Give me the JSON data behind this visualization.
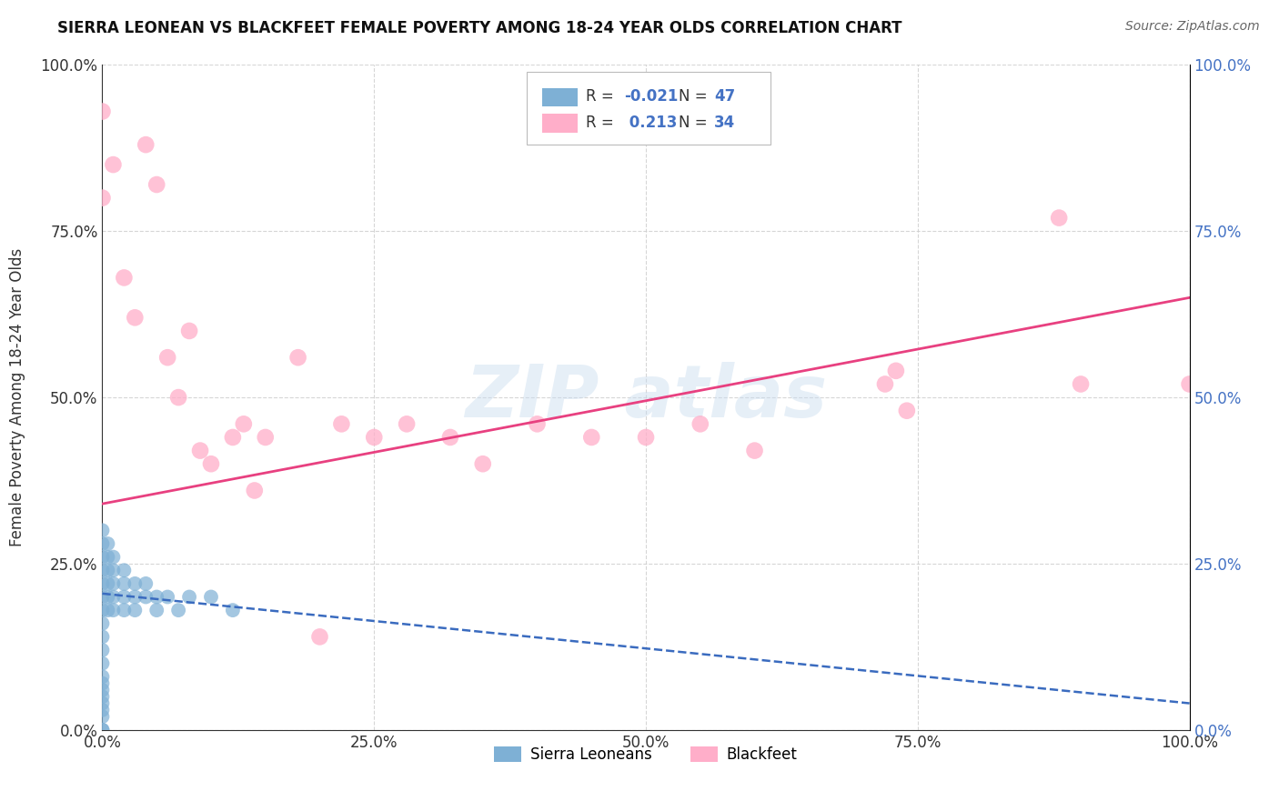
{
  "title": "SIERRA LEONEAN VS BLACKFEET FEMALE POVERTY AMONG 18-24 YEAR OLDS CORRELATION CHART",
  "source": "Source: ZipAtlas.com",
  "ylabel": "Female Poverty Among 18-24 Year Olds",
  "xlim": [
    0.0,
    1.0
  ],
  "ylim": [
    0.0,
    1.0
  ],
  "xticks": [
    0.0,
    0.25,
    0.5,
    0.75,
    1.0
  ],
  "yticks": [
    0.0,
    0.25,
    0.5,
    0.75,
    1.0
  ],
  "xticklabels": [
    "0.0%",
    "25.0%",
    "50.0%",
    "75.0%",
    "100.0%"
  ],
  "yticklabels": [
    "0.0%",
    "25.0%",
    "50.0%",
    "75.0%",
    "100.0%"
  ],
  "sierra_color": "#7eb0d5",
  "blackfeet_color": "#ffaec9",
  "sierra_line_color": "#3a6bbf",
  "blackfeet_line_color": "#e84080",
  "background_color": "#ffffff",
  "watermark": "ZIPatlas",
  "sierra_line_start_y": 0.205,
  "sierra_line_end_y": 0.04,
  "blackfeet_line_start_y": 0.34,
  "blackfeet_line_end_y": 0.65,
  "sierra_x": [
    0.0,
    0.0,
    0.0,
    0.0,
    0.0,
    0.0,
    0.0,
    0.0,
    0.0,
    0.0,
    0.0,
    0.0,
    0.0,
    0.0,
    0.0,
    0.0,
    0.0,
    0.0,
    0.0,
    0.0,
    0.005,
    0.005,
    0.005,
    0.005,
    0.005,
    0.005,
    0.01,
    0.01,
    0.01,
    0.01,
    0.01,
    0.02,
    0.02,
    0.02,
    0.02,
    0.03,
    0.03,
    0.03,
    0.04,
    0.04,
    0.05,
    0.05,
    0.06,
    0.07,
    0.08,
    0.1,
    0.12
  ],
  "sierra_y": [
    0.0,
    0.0,
    0.02,
    0.03,
    0.04,
    0.05,
    0.06,
    0.07,
    0.08,
    0.1,
    0.12,
    0.14,
    0.16,
    0.18,
    0.2,
    0.22,
    0.24,
    0.26,
    0.28,
    0.3,
    0.18,
    0.2,
    0.22,
    0.24,
    0.26,
    0.28,
    0.18,
    0.2,
    0.22,
    0.24,
    0.26,
    0.18,
    0.2,
    0.22,
    0.24,
    0.18,
    0.2,
    0.22,
    0.2,
    0.22,
    0.18,
    0.2,
    0.2,
    0.18,
    0.2,
    0.2,
    0.18
  ],
  "blackfeet_x": [
    0.0,
    0.0,
    0.01,
    0.02,
    0.03,
    0.04,
    0.05,
    0.06,
    0.07,
    0.08,
    0.09,
    0.1,
    0.12,
    0.13,
    0.14,
    0.15,
    0.18,
    0.2,
    0.22,
    0.25,
    0.28,
    0.32,
    0.35,
    0.4,
    0.45,
    0.5,
    0.55,
    0.6,
    0.72,
    0.73,
    0.74,
    0.88,
    0.9,
    1.0
  ],
  "blackfeet_y": [
    0.93,
    0.8,
    0.85,
    0.68,
    0.62,
    0.88,
    0.82,
    0.56,
    0.5,
    0.6,
    0.42,
    0.4,
    0.44,
    0.46,
    0.36,
    0.44,
    0.56,
    0.14,
    0.46,
    0.44,
    0.46,
    0.44,
    0.4,
    0.46,
    0.44,
    0.44,
    0.46,
    0.42,
    0.52,
    0.54,
    0.48,
    0.77,
    0.52,
    0.52
  ]
}
